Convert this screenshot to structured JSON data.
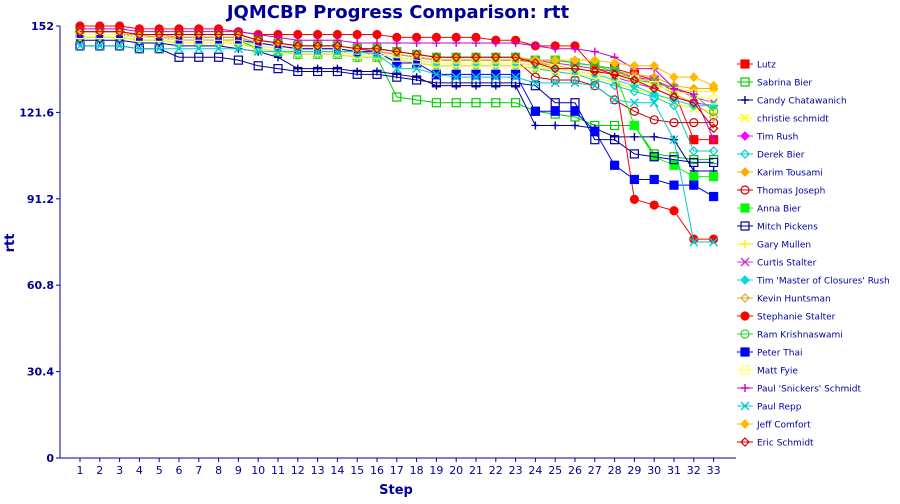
{
  "chart_data": {
    "type": "line",
    "title": "JQMCBP Progress Comparison: rtt",
    "xlabel": "Step",
    "ylabel": "rtt",
    "ylim": [
      0,
      152
    ],
    "yticks": [
      "0",
      "30.4",
      "60.8",
      "91.2",
      "121.6",
      "152"
    ],
    "x": [
      1,
      2,
      3,
      4,
      5,
      6,
      7,
      8,
      9,
      10,
      11,
      12,
      13,
      14,
      15,
      16,
      17,
      18,
      19,
      20,
      21,
      22,
      23,
      24,
      25,
      26,
      27,
      28,
      29,
      30,
      31,
      32,
      33
    ],
    "grid": false,
    "legend_position": "right",
    "series": [
      {
        "name": "Lutz",
        "color": "#ff0000",
        "marker": "square-filled",
        "values": [
          150,
          150,
          150,
          149,
          149,
          149,
          149,
          149,
          149,
          147,
          146,
          145,
          145,
          145,
          144,
          143,
          142,
          141,
          140,
          140,
          140,
          140,
          140,
          140,
          140,
          139,
          138,
          137,
          135,
          133,
          129,
          112,
          112
        ]
      },
      {
        "name": "Sabrina Bier",
        "color": "#00cc00",
        "marker": "square-open",
        "values": [
          149,
          149,
          149,
          148,
          148,
          147,
          147,
          147,
          147,
          144,
          143,
          142,
          142,
          142,
          141,
          141,
          127,
          126,
          125,
          125,
          125,
          125,
          125,
          122,
          121,
          120,
          117,
          117,
          117,
          107,
          106,
          105,
          105
        ]
      },
      {
        "name": "Candy Chatawanich",
        "color": "#000099",
        "marker": "plus",
        "values": [
          147,
          147,
          147,
          146,
          146,
          145,
          145,
          145,
          144,
          143,
          141,
          137,
          137,
          137,
          136,
          136,
          135,
          134,
          131,
          131,
          131,
          131,
          131,
          117,
          117,
          117,
          116,
          113,
          113,
          113,
          112,
          101,
          101
        ]
      },
      {
        "name": "christie schmidt",
        "color": "#ffff00",
        "marker": "x",
        "values": [
          149,
          149,
          149,
          148,
          148,
          147,
          147,
          147,
          146,
          144,
          143,
          142,
          142,
          142,
          141,
          141,
          140,
          139,
          138,
          138,
          138,
          138,
          138,
          137,
          136,
          135,
          134,
          132,
          130,
          128,
          125,
          123,
          122
        ]
      },
      {
        "name": "Tim Rush",
        "color": "#ff00ff",
        "marker": "diamond-filled",
        "values": [
          149,
          149,
          149,
          148,
          148,
          147,
          147,
          147,
          147,
          145,
          144,
          143,
          143,
          143,
          142,
          142,
          141,
          140,
          139,
          139,
          139,
          139,
          139,
          138,
          137,
          136,
          135,
          134,
          132,
          130,
          127,
          125,
          124
        ]
      },
      {
        "name": "Derek Bier",
        "color": "#00cccc",
        "marker": "diamond-open",
        "values": [
          148,
          148,
          148,
          147,
          147,
          146,
          146,
          146,
          146,
          144,
          143,
          142,
          142,
          142,
          141,
          141,
          140,
          139,
          138,
          138,
          138,
          138,
          138,
          137,
          136,
          135,
          133,
          131,
          129,
          127,
          124,
          108,
          108
        ]
      },
      {
        "name": "Karim Tousami",
        "color": "#ffaa00",
        "marker": "diamond-filled",
        "values": [
          149,
          149,
          149,
          149,
          148,
          148,
          148,
          148,
          148,
          146,
          145,
          144,
          144,
          144,
          143,
          143,
          142,
          141,
          140,
          140,
          140,
          140,
          140,
          139,
          139,
          138,
          137,
          136,
          135,
          134,
          131,
          130,
          130
        ]
      },
      {
        "name": "Thomas Joseph",
        "color": "#cc0000",
        "marker": "circle-open",
        "values": [
          150,
          150,
          150,
          149,
          149,
          148,
          148,
          148,
          148,
          146,
          145,
          144,
          144,
          144,
          143,
          143,
          142,
          141,
          140,
          140,
          140,
          140,
          140,
          134,
          133,
          133,
          131,
          126,
          122,
          119,
          118,
          118,
          118
        ]
      },
      {
        "name": "Anna Bier",
        "color": "#00ff00",
        "marker": "square-filled",
        "values": [
          150,
          150,
          150,
          149,
          149,
          149,
          149,
          149,
          149,
          147,
          146,
          145,
          145,
          145,
          144,
          144,
          143,
          142,
          141,
          141,
          141,
          141,
          141,
          140,
          140,
          139,
          138,
          136,
          117,
          106,
          103,
          99,
          99
        ]
      },
      {
        "name": "Mitch Pickens",
        "color": "#000099",
        "marker": "square-open",
        "values": [
          145,
          145,
          145,
          144,
          144,
          141,
          141,
          141,
          140,
          138,
          137,
          136,
          136,
          136,
          135,
          135,
          134,
          133,
          132,
          132,
          132,
          132,
          132,
          131,
          125,
          125,
          112,
          112,
          107,
          106,
          105,
          104,
          104
        ]
      },
      {
        "name": "Gary Mullen",
        "color": "#ffee00",
        "marker": "plus",
        "values": [
          148,
          148,
          148,
          147,
          147,
          146,
          146,
          146,
          146,
          144,
          143,
          142,
          142,
          142,
          141,
          141,
          140,
          139,
          138,
          138,
          138,
          138,
          138,
          137,
          137,
          136,
          135,
          134,
          133,
          132,
          130,
          129,
          129
        ]
      },
      {
        "name": "Curtis Stalter",
        "color": "#cc33cc",
        "marker": "x",
        "values": [
          150,
          150,
          150,
          149,
          149,
          149,
          149,
          149,
          149,
          147,
          146,
          145,
          145,
          145,
          144,
          144,
          143,
          142,
          141,
          141,
          141,
          141,
          141,
          140,
          139,
          138,
          137,
          136,
          134,
          133,
          130,
          127,
          125
        ]
      },
      {
        "name": "Tim 'Master of Closures' Rush",
        "color": "#00dddd",
        "marker": "diamond-filled",
        "values": [
          149,
          149,
          149,
          148,
          148,
          147,
          147,
          147,
          147,
          145,
          144,
          143,
          143,
          143,
          142,
          142,
          141,
          140,
          139,
          139,
          139,
          139,
          139,
          138,
          137,
          136,
          135,
          133,
          131,
          128,
          126,
          124,
          124
        ]
      },
      {
        "name": "Kevin Huntsman",
        "color": "#ddaa33",
        "marker": "diamond-open",
        "values": [
          150,
          150,
          150,
          149,
          149,
          148,
          148,
          148,
          148,
          146,
          145,
          144,
          144,
          144,
          143,
          143,
          142,
          141,
          140,
          140,
          140,
          140,
          140,
          139,
          138,
          137,
          136,
          135,
          134,
          132,
          128,
          125,
          120
        ]
      },
      {
        "name": "Stephanie Stalter",
        "color": "#ff0000",
        "marker": "circle-filled",
        "values": [
          152,
          152,
          152,
          151,
          151,
          151,
          151,
          151,
          150,
          149,
          149,
          149,
          149,
          149,
          149,
          149,
          148,
          148,
          148,
          148,
          148,
          147,
          147,
          145,
          145,
          145,
          137,
          135,
          91,
          89,
          87,
          77,
          77
        ]
      },
      {
        "name": "Ram Krishnaswami",
        "color": "#33cc33",
        "marker": "circle-open",
        "values": [
          150,
          150,
          150,
          149,
          149,
          149,
          149,
          149,
          149,
          147,
          146,
          145,
          145,
          145,
          144,
          144,
          143,
          142,
          141,
          141,
          141,
          141,
          141,
          140,
          140,
          139,
          138,
          137,
          133,
          132,
          130,
          128,
          122
        ]
      },
      {
        "name": "Peter Thai",
        "color": "#0000ff",
        "marker": "square-filled",
        "values": [
          149,
          149,
          149,
          148,
          148,
          147,
          147,
          147,
          147,
          146,
          145,
          144,
          144,
          144,
          143,
          143,
          139,
          139,
          135,
          135,
          135,
          135,
          135,
          122,
          122,
          122,
          115,
          103,
          98,
          98,
          96,
          96,
          92
        ]
      },
      {
        "name": "Matt Fyie",
        "color": "#ffff66",
        "marker": "square-open",
        "values": [
          149,
          149,
          149,
          148,
          148,
          147,
          147,
          147,
          147,
          145,
          144,
          143,
          143,
          143,
          142,
          142,
          141,
          140,
          139,
          139,
          139,
          139,
          139,
          138,
          137,
          136,
          135,
          134,
          133,
          131,
          129,
          128,
          126
        ]
      },
      {
        "name": "Paul 'Snickers' Schmidt",
        "color": "#cc00cc",
        "marker": "plus",
        "values": [
          151,
          151,
          151,
          150,
          150,
          150,
          150,
          150,
          150,
          149,
          148,
          147,
          147,
          147,
          146,
          146,
          146,
          146,
          146,
          146,
          146,
          146,
          146,
          145,
          144,
          144,
          143,
          141,
          137,
          137,
          130,
          128,
          112
        ]
      },
      {
        "name": "Paul Repp",
        "color": "#00cccc",
        "marker": "x",
        "values": [
          145,
          145,
          145,
          144,
          144,
          144,
          144,
          144,
          144,
          143,
          143,
          143,
          143,
          143,
          143,
          142,
          137,
          137,
          135,
          134,
          134,
          134,
          134,
          132,
          132,
          132,
          131,
          126,
          125,
          125,
          112,
          76,
          76
        ]
      },
      {
        "name": "Jeff Comfort",
        "color": "#ffbb00",
        "marker": "diamond-filled",
        "values": [
          150,
          150,
          150,
          149,
          149,
          149,
          149,
          149,
          149,
          147,
          146,
          145,
          145,
          145,
          144,
          144,
          143,
          142,
          141,
          141,
          141,
          141,
          141,
          140,
          140,
          140,
          140,
          139,
          138,
          138,
          134,
          134,
          131
        ]
      },
      {
        "name": "Eric Schmidt",
        "color": "#cc0000",
        "marker": "diamond-open",
        "values": [
          150,
          150,
          150,
          149,
          149,
          149,
          149,
          149,
          149,
          147,
          146,
          145,
          145,
          145,
          144,
          144,
          143,
          142,
          141,
          141,
          141,
          141,
          141,
          139,
          137,
          137,
          136,
          135,
          133,
          130,
          127,
          125,
          116
        ]
      }
    ]
  }
}
